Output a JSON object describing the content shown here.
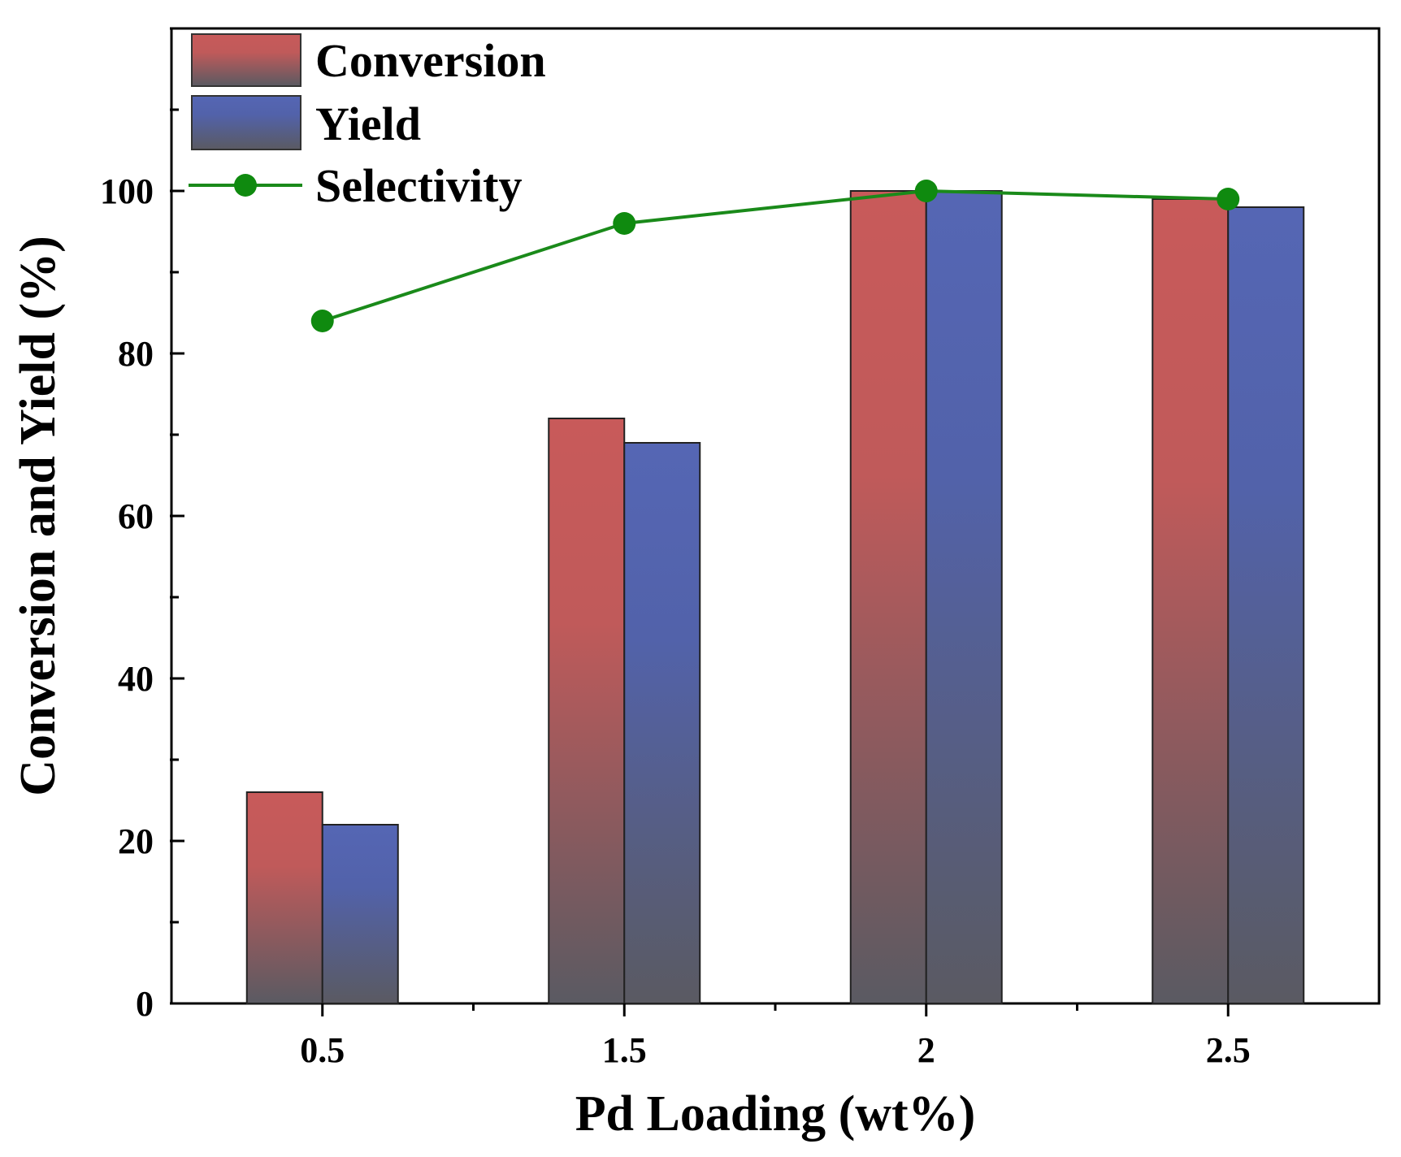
{
  "chart_data": {
    "type": "bar",
    "title": "",
    "xlabel": "Pd Loading (wt%)",
    "ylabel": "Conversion and Yield (%)",
    "categories": [
      "0.5",
      "1.5",
      "2",
      "2.5"
    ],
    "ylim": [
      0,
      120
    ],
    "yticks": [
      0,
      20,
      40,
      60,
      80,
      100
    ],
    "ytick_labels": [
      "0",
      "20",
      "40",
      "60",
      "80",
      "100"
    ],
    "series": [
      {
        "name": "Conversion",
        "kind": "bar",
        "values": [
          26,
          72,
          100,
          99
        ],
        "color": "#c85a5a",
        "color_bottom": "#5a5a62"
      },
      {
        "name": "Yield",
        "kind": "bar",
        "values": [
          22,
          69,
          100,
          98
        ],
        "color": "#5566b4",
        "color_bottom": "#5a5a62"
      },
      {
        "name": "Selectivity",
        "kind": "line",
        "values": [
          84,
          96,
          100,
          99
        ],
        "color": "#1a8a1a"
      }
    ],
    "legend": {
      "position": "top-left",
      "entries": [
        "Conversion",
        "Yield",
        "Selectivity"
      ]
    },
    "grid": false
  }
}
